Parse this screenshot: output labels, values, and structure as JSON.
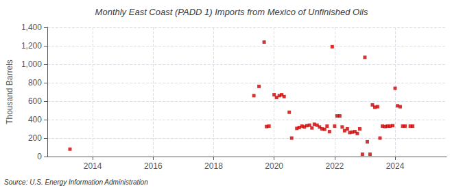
{
  "chart_data": {
    "type": "scatter",
    "title": "Monthly East Coast (PADD 1) Imports from Mexico of Unfinished Oils",
    "ylabel": "Thousand Barrels",
    "annotation": "Source: U.S. Energy Information Administration",
    "color": "#cc0000",
    "marker": "square",
    "grid": true,
    "xlim": [
      2012.5,
      2025.7
    ],
    "xticks": [
      2014,
      2016,
      2018,
      2020,
      2022,
      2024
    ],
    "ylim": [
      0,
      1400
    ],
    "yticks": [
      0,
      200,
      400,
      600,
      800,
      {
        "value": 1000,
        "label": "1,000"
      },
      {
        "value": 1200,
        "label": "1,200"
      },
      {
        "value": 1400,
        "label": "1,400"
      }
    ],
    "x": [
      2013.25,
      2019.33,
      2019.5,
      2019.67,
      2019.75,
      2019.83,
      2020.0,
      2020.08,
      2020.17,
      2020.25,
      2020.33,
      2020.5,
      2020.58,
      2020.75,
      2020.83,
      2020.92,
      2021.0,
      2021.08,
      2021.17,
      2021.25,
      2021.33,
      2021.42,
      2021.5,
      2021.58,
      2021.67,
      2021.75,
      2021.83,
      2021.92,
      2022.0,
      2022.08,
      2022.17,
      2022.25,
      2022.33,
      2022.42,
      2022.5,
      2022.58,
      2022.67,
      2022.75,
      2022.83,
      2022.92,
      2023.0,
      2023.08,
      2023.17,
      2023.25,
      2023.33,
      2023.42,
      2023.5,
      2023.58,
      2023.67,
      2023.75,
      2023.83,
      2023.92,
      2024.0,
      2024.08,
      2024.17,
      2024.25,
      2024.33,
      2024.5,
      2024.58
    ],
    "values": [
      80,
      660,
      760,
      1240,
      325,
      330,
      670,
      640,
      660,
      670,
      650,
      480,
      200,
      305,
      315,
      330,
      320,
      335,
      340,
      310,
      350,
      340,
      320,
      300,
      295,
      330,
      270,
      1190,
      330,
      440,
      440,
      320,
      280,
      300,
      260,
      265,
      270,
      250,
      300,
      25,
      1075,
      160,
      25,
      560,
      535,
      540,
      200,
      330,
      325,
      330,
      330,
      335,
      740,
      550,
      540,
      330,
      330,
      330,
      330
    ]
  }
}
